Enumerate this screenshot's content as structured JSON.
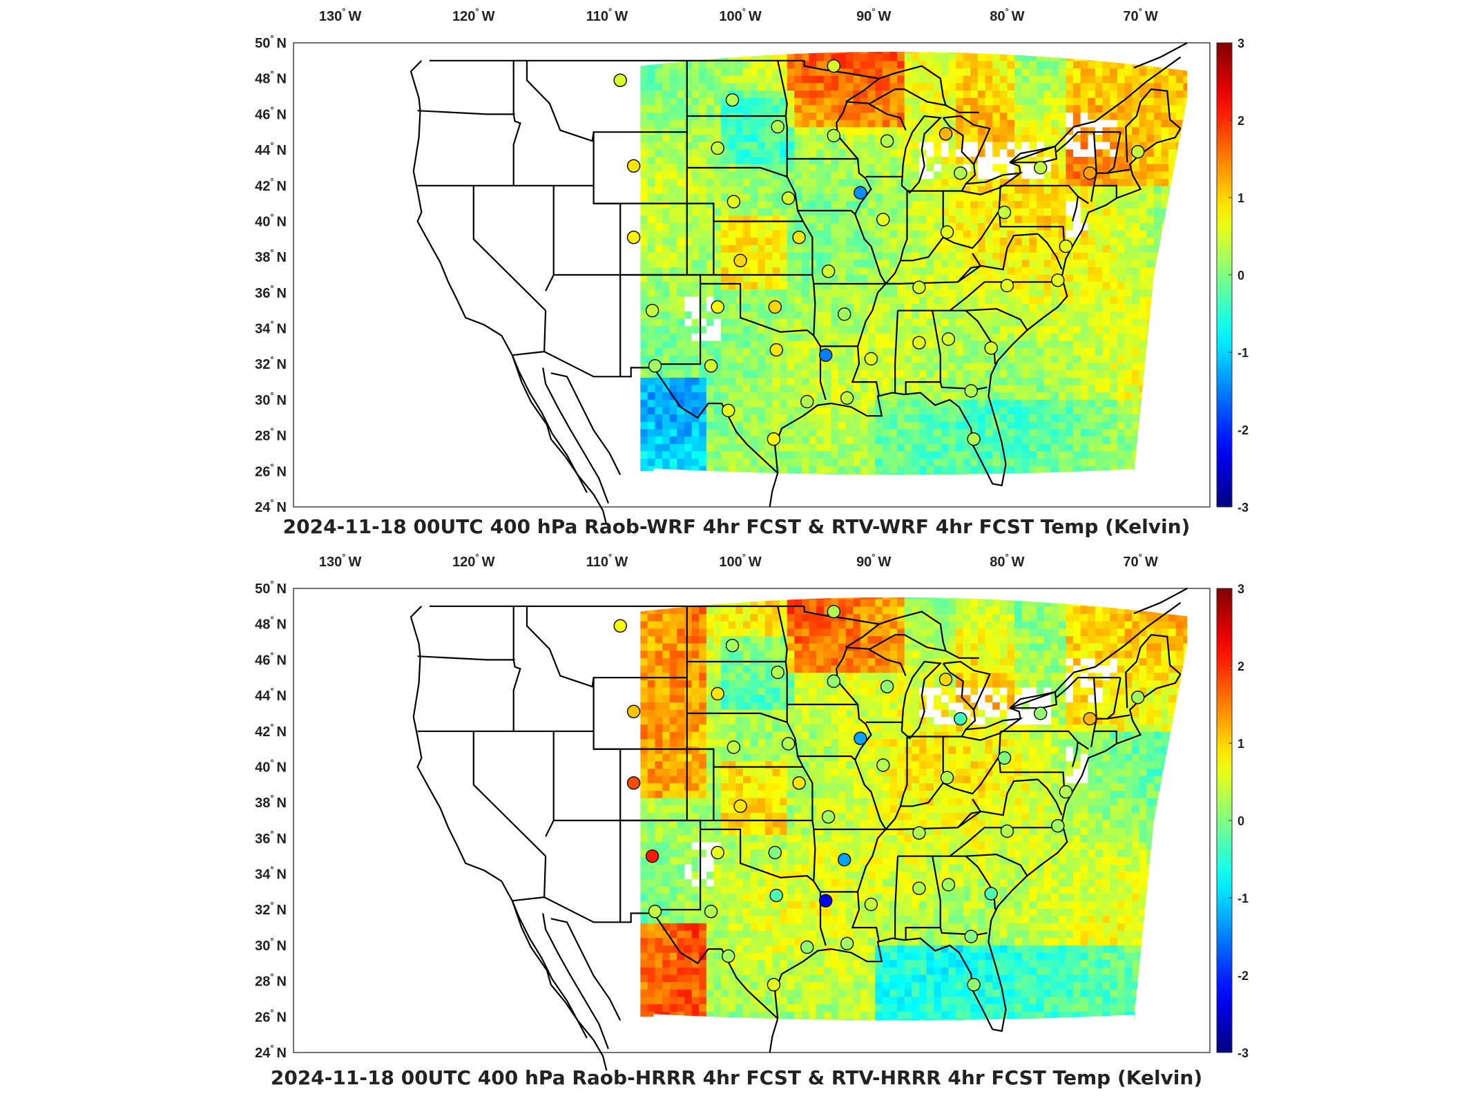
{
  "panels": [
    {
      "title": "2024-11-18 00UTC 400 hPa Raob-WRF 4hr FCST & RTV-WRF 4hr FCST Temp (Kelvin)",
      "lon_ticks": [
        "130 W",
        "120 W",
        "110 W",
        "100 W",
        "90 W",
        "80 W",
        "70 W"
      ],
      "lat_ticks": [
        "50 N",
        "48 N",
        "46 N",
        "44 N",
        "42 N",
        "40 N",
        "38 N",
        "36 N",
        "34 N",
        "32 N",
        "30 N",
        "28 N",
        "26 N",
        "24 N"
      ],
      "colorbar_ticks": [
        "3",
        "2",
        "1",
        "0",
        "-1",
        "-2",
        "-3"
      ],
      "raob_stations": [
        {
          "lon": -109.0,
          "lat": 47.9,
          "v": 0.5
        },
        {
          "lon": -108.0,
          "lat": 43.1,
          "v": 0.9
        },
        {
          "lon": -108.0,
          "lat": 39.1,
          "v": 0.8
        },
        {
          "lon": -106.6,
          "lat": 35.0,
          "v": 0.4
        },
        {
          "lon": -106.4,
          "lat": 31.9,
          "v": 0.2
        },
        {
          "lon": -100.6,
          "lat": 46.8,
          "v": 0.3
        },
        {
          "lon": -97.2,
          "lat": 45.3,
          "v": 0.3
        },
        {
          "lon": -101.7,
          "lat": 44.1,
          "v": 0.4
        },
        {
          "lon": -100.5,
          "lat": 41.1,
          "v": 0.6
        },
        {
          "lon": -96.4,
          "lat": 41.3,
          "v": 0.5
        },
        {
          "lon": -95.6,
          "lat": 39.1,
          "v": 0.9
        },
        {
          "lon": -100.0,
          "lat": 37.8,
          "v": 1.0
        },
        {
          "lon": -97.4,
          "lat": 35.2,
          "v": 1.0
        },
        {
          "lon": -101.7,
          "lat": 35.2,
          "v": 0.8
        },
        {
          "lon": -97.3,
          "lat": 32.8,
          "v": 0.9
        },
        {
          "lon": -102.2,
          "lat": 31.9,
          "v": 0.5
        },
        {
          "lon": -100.9,
          "lat": 29.4,
          "v": 0.6
        },
        {
          "lon": -97.5,
          "lat": 27.8,
          "v": 0.8
        },
        {
          "lon": -93.6,
          "lat": 32.5,
          "v": -1.5
        },
        {
          "lon": -92.2,
          "lat": 34.8,
          "v": 0.2
        },
        {
          "lon": -93.4,
          "lat": 37.2,
          "v": 0.5
        },
        {
          "lon": -93.0,
          "lat": 44.8,
          "v": 0.3
        },
        {
          "lon": -91.0,
          "lat": 41.6,
          "v": -1.4
        },
        {
          "lon": -89.3,
          "lat": 40.1,
          "v": 0.6
        },
        {
          "lon": -89.0,
          "lat": 44.5,
          "v": 0.3
        },
        {
          "lon": -84.6,
          "lat": 44.9,
          "v": 1.2
        },
        {
          "lon": -83.5,
          "lat": 42.7,
          "v": 0.3
        },
        {
          "lon": -86.6,
          "lat": 36.3,
          "v": 0.5
        },
        {
          "lon": -84.5,
          "lat": 39.4,
          "v": 0.6
        },
        {
          "lon": -80.2,
          "lat": 40.5,
          "v": 0.4
        },
        {
          "lon": -80.0,
          "lat": 36.4,
          "v": 0.6
        },
        {
          "lon": -77.5,
          "lat": 43.0,
          "v": 0.4
        },
        {
          "lon": -73.8,
          "lat": 42.7,
          "v": 1.3
        },
        {
          "lon": -70.2,
          "lat": 43.9,
          "v": 0.4
        },
        {
          "lon": -75.6,
          "lat": 38.6,
          "v": 0.6
        },
        {
          "lon": -76.2,
          "lat": 36.7,
          "v": 0.6
        },
        {
          "lon": -81.2,
          "lat": 32.9,
          "v": 0.5
        },
        {
          "lon": -84.4,
          "lat": 33.4,
          "v": 0.5
        },
        {
          "lon": -86.6,
          "lat": 33.2,
          "v": 0.6
        },
        {
          "lon": -90.2,
          "lat": 32.3,
          "v": 0.6
        },
        {
          "lon": -92.0,
          "lat": 30.1,
          "v": 0.4
        },
        {
          "lon": -82.7,
          "lat": 30.5,
          "v": 0.3
        },
        {
          "lon": -82.5,
          "lat": 27.8,
          "v": 0.3
        },
        {
          "lon": -95.0,
          "lat": 29.9,
          "v": 0.3
        },
        {
          "lon": -93.0,
          "lat": 48.7,
          "v": 0.5
        }
      ]
    },
    {
      "title": "2024-11-18 00UTC 400 hPa Raob-HRRR 4hr FCST & RTV-HRRR 4hr FCST Temp (Kelvin)",
      "lon_ticks": [
        "130 W",
        "120 W",
        "110 W",
        "100 W",
        "90 W",
        "80 W",
        "70 W"
      ],
      "lat_ticks": [
        "50 N",
        "48 N",
        "46 N",
        "44 N",
        "42 N",
        "40 N",
        "38 N",
        "36 N",
        "34 N",
        "32 N",
        "30 N",
        "28 N",
        "26 N",
        "24 N"
      ],
      "colorbar_ticks": [
        "3",
        "2",
        "1",
        "0",
        "-1",
        "-2",
        "-3"
      ],
      "raob_stations": [
        {
          "lon": -109.0,
          "lat": 47.9,
          "v": 0.7
        },
        {
          "lon": -108.0,
          "lat": 43.1,
          "v": 1.1
        },
        {
          "lon": -108.0,
          "lat": 39.1,
          "v": 1.8
        },
        {
          "lon": -106.6,
          "lat": 35.0,
          "v": 2.1
        },
        {
          "lon": -106.4,
          "lat": 31.9,
          "v": 0.4
        },
        {
          "lon": -100.6,
          "lat": 46.8,
          "v": 0.2
        },
        {
          "lon": -97.2,
          "lat": 45.3,
          "v": 0.3
        },
        {
          "lon": -101.7,
          "lat": 44.1,
          "v": 0.9
        },
        {
          "lon": -100.5,
          "lat": 41.1,
          "v": 0.4
        },
        {
          "lon": -96.4,
          "lat": 41.3,
          "v": 0.3
        },
        {
          "lon": -95.6,
          "lat": 39.1,
          "v": 0.9
        },
        {
          "lon": -100.0,
          "lat": 37.8,
          "v": 0.9
        },
        {
          "lon": -97.4,
          "lat": 35.2,
          "v": 0.0
        },
        {
          "lon": -101.7,
          "lat": 35.2,
          "v": 0.6
        },
        {
          "lon": -97.3,
          "lat": 32.8,
          "v": -0.3
        },
        {
          "lon": -102.2,
          "lat": 31.9,
          "v": 0.3
        },
        {
          "lon": -100.9,
          "lat": 29.4,
          "v": 0.2
        },
        {
          "lon": -97.5,
          "lat": 27.8,
          "v": 0.6
        },
        {
          "lon": -93.6,
          "lat": 32.5,
          "v": -2.3
        },
        {
          "lon": -92.2,
          "lat": 34.8,
          "v": -1.3
        },
        {
          "lon": -93.4,
          "lat": 37.2,
          "v": 0.2
        },
        {
          "lon": -93.0,
          "lat": 44.8,
          "v": 0.1
        },
        {
          "lon": -91.0,
          "lat": 41.6,
          "v": -1.3
        },
        {
          "lon": -89.3,
          "lat": 40.1,
          "v": 0.3
        },
        {
          "lon": -89.0,
          "lat": 44.5,
          "v": 0.1
        },
        {
          "lon": -84.6,
          "lat": 44.9,
          "v": 1.0
        },
        {
          "lon": -83.5,
          "lat": 42.7,
          "v": -0.4
        },
        {
          "lon": -86.6,
          "lat": 36.3,
          "v": 0.3
        },
        {
          "lon": -84.5,
          "lat": 39.4,
          "v": 0.3
        },
        {
          "lon": -80.2,
          "lat": 40.5,
          "v": 0.0
        },
        {
          "lon": -80.0,
          "lat": 36.4,
          "v": 0.3
        },
        {
          "lon": -77.5,
          "lat": 43.0,
          "v": 0.1
        },
        {
          "lon": -73.8,
          "lat": 42.7,
          "v": 1.2
        },
        {
          "lon": -70.2,
          "lat": 43.9,
          "v": 0.2
        },
        {
          "lon": -75.6,
          "lat": 38.6,
          "v": 0.3
        },
        {
          "lon": -76.2,
          "lat": 36.7,
          "v": 0.2
        },
        {
          "lon": -81.2,
          "lat": 32.9,
          "v": -0.3
        },
        {
          "lon": -84.4,
          "lat": 33.4,
          "v": 0.2
        },
        {
          "lon": -86.6,
          "lat": 33.2,
          "v": 0.3
        },
        {
          "lon": -90.2,
          "lat": 32.3,
          "v": 0.4
        },
        {
          "lon": -92.0,
          "lat": 30.1,
          "v": 0.2
        },
        {
          "lon": -82.7,
          "lat": 30.5,
          "v": 0.0
        },
        {
          "lon": -82.5,
          "lat": 27.8,
          "v": 0.1
        },
        {
          "lon": -95.0,
          "lat": 29.9,
          "v": 0.1
        },
        {
          "lon": -93.0,
          "lat": 48.7,
          "v": 0.3
        }
      ]
    }
  ],
  "colorbar": {
    "vmin": -3,
    "vmax": 3,
    "colormap": "jet"
  },
  "colors": {
    "coast": "#000000",
    "background": "#ffffff"
  }
}
